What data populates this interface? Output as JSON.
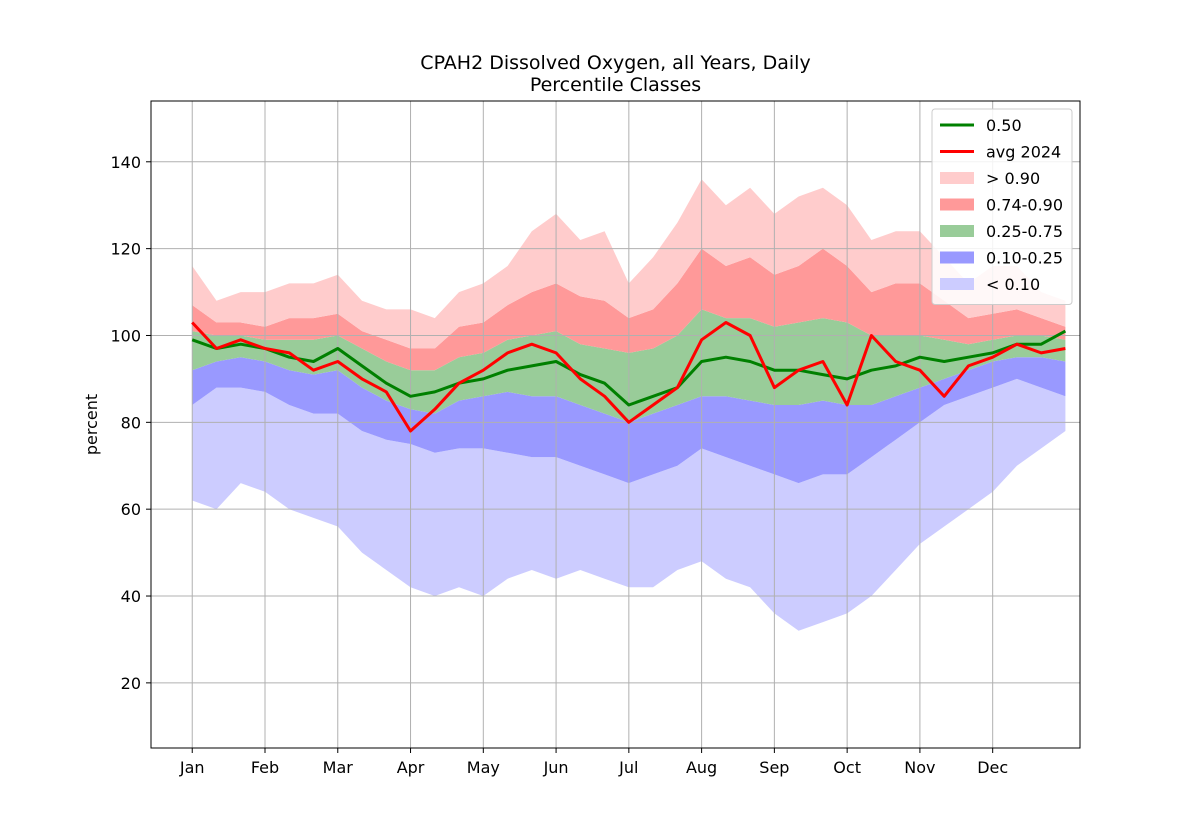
{
  "chart_data": {
    "type": "area",
    "title_lines": [
      "CPAH2 Dissolved Oxygen, all Years, Daily",
      "Percentile Classes"
    ],
    "xlabel": "",
    "ylabel": "percent",
    "ylim": [
      5,
      154
    ],
    "xlim": [
      -17,
      366
    ],
    "yticks": [
      20,
      40,
      60,
      80,
      100,
      120,
      140
    ],
    "xticks": [
      {
        "day": 0,
        "label": "Jan"
      },
      {
        "day": 30,
        "label": "Feb"
      },
      {
        "day": 60,
        "label": "Mar"
      },
      {
        "day": 90,
        "label": "Apr"
      },
      {
        "day": 120,
        "label": "May"
      },
      {
        "day": 150,
        "label": "Jun"
      },
      {
        "day": 180,
        "label": "Jul"
      },
      {
        "day": 210,
        "label": "Aug"
      },
      {
        "day": 240,
        "label": "Sep"
      },
      {
        "day": 270,
        "label": "Oct"
      },
      {
        "day": 300,
        "label": "Nov"
      },
      {
        "day": 330,
        "label": "Dec"
      }
    ],
    "grid": true,
    "legend_position": "top-right",
    "legend": [
      {
        "label": "0.50",
        "kind": "line",
        "color": "#008000"
      },
      {
        "label": "avg 2024",
        "kind": "line",
        "color": "#ff0000"
      },
      {
        "label": "> 0.90",
        "kind": "patch",
        "color": "#ffcccc"
      },
      {
        "label": "0.74-0.90",
        "kind": "patch",
        "color": "#ff9999"
      },
      {
        "label": "0.25-0.75",
        "kind": "patch",
        "color": "#99cc99"
      },
      {
        "label": "0.10-0.25",
        "kind": "patch",
        "color": "#9999ff"
      },
      {
        "label": "< 0.10",
        "kind": "patch",
        "color": "#ccccff"
      }
    ],
    "colors": {
      "median": "#008000",
      "avg_2024": "#ff0000",
      "gt90": "#ffcccc",
      "p74_90": "#ff9999",
      "p25_75": "#99cc99",
      "p10_25": "#9999ff",
      "lt10": "#ccccff"
    },
    "series_days": [
      0,
      10,
      20,
      30,
      40,
      50,
      60,
      70,
      80,
      90,
      100,
      110,
      120,
      130,
      140,
      150,
      160,
      170,
      180,
      190,
      200,
      210,
      220,
      230,
      240,
      250,
      260,
      270,
      280,
      290,
      300,
      310,
      320,
      330,
      340,
      350,
      360
    ],
    "series": [
      {
        "name": "> 0.90",
        "role": "max",
        "values": [
          116,
          108,
          110,
          110,
          112,
          112,
          114,
          108,
          106,
          106,
          104,
          110,
          112,
          116,
          124,
          128,
          122,
          124,
          112,
          118,
          126,
          136,
          130,
          134,
          128,
          132,
          134,
          130,
          122,
          124,
          124,
          118,
          112,
          116,
          116,
          110,
          108
        ]
      },
      {
        "name": "0.74-0.90",
        "role": "p90",
        "values": [
          107,
          103,
          103,
          102,
          104,
          104,
          105,
          101,
          99,
          97,
          97,
          102,
          103,
          107,
          110,
          112,
          109,
          108,
          104,
          106,
          112,
          120,
          116,
          118,
          114,
          116,
          120,
          116,
          110,
          112,
          112,
          108,
          104,
          105,
          106,
          104,
          102
        ]
      },
      {
        "name": "0.25-0.75",
        "role": "p75",
        "values": [
          101,
          100,
          100,
          99,
          99,
          99,
          100,
          97,
          94,
          92,
          92,
          95,
          96,
          99,
          100,
          101,
          98,
          97,
          96,
          97,
          100,
          106,
          104,
          104,
          102,
          103,
          104,
          103,
          100,
          100,
          100,
          99,
          98,
          99,
          100,
          100,
          99
        ]
      },
      {
        "name": "0.10-0.25",
        "role": "p25",
        "values": [
          92,
          94,
          95,
          94,
          92,
          91,
          92,
          88,
          85,
          83,
          82,
          85,
          86,
          87,
          86,
          86,
          84,
          82,
          80,
          82,
          84,
          86,
          86,
          85,
          84,
          84,
          85,
          84,
          84,
          86,
          88,
          90,
          92,
          94,
          95,
          95,
          94
        ]
      },
      {
        "name": "< 0.10",
        "role": "p10",
        "values": [
          84,
          88,
          88,
          87,
          84,
          82,
          82,
          78,
          76,
          75,
          73,
          74,
          74,
          73,
          72,
          72,
          70,
          68,
          66,
          68,
          70,
          74,
          72,
          70,
          68,
          66,
          68,
          68,
          72,
          76,
          80,
          84,
          86,
          88,
          90,
          88,
          86
        ]
      },
      {
        "name": "< 0.10",
        "role": "min",
        "values": [
          62,
          60,
          66,
          64,
          60,
          58,
          56,
          50,
          46,
          42,
          40,
          42,
          40,
          44,
          46,
          44,
          46,
          44,
          42,
          42,
          46,
          48,
          44,
          42,
          36,
          32,
          34,
          36,
          40,
          46,
          52,
          56,
          60,
          64,
          70,
          74,
          78
        ]
      },
      {
        "name": "0.50",
        "role": "median",
        "values": [
          99,
          97,
          98,
          97,
          95,
          94,
          97,
          93,
          89,
          86,
          87,
          89,
          90,
          92,
          93,
          94,
          91,
          89,
          84,
          86,
          88,
          94,
          95,
          94,
          92,
          92,
          91,
          90,
          92,
          93,
          95,
          94,
          95,
          96,
          98,
          98,
          101
        ]
      },
      {
        "name": "avg 2024",
        "role": "avg",
        "values": [
          103,
          97,
          99,
          97,
          96,
          92,
          94,
          90,
          87,
          78,
          83,
          89,
          92,
          96,
          98,
          96,
          90,
          86,
          80,
          84,
          88,
          99,
          103,
          100,
          88,
          92,
          94,
          84,
          100,
          94,
          92,
          86,
          93,
          95,
          98,
          96,
          97
        ]
      }
    ]
  }
}
